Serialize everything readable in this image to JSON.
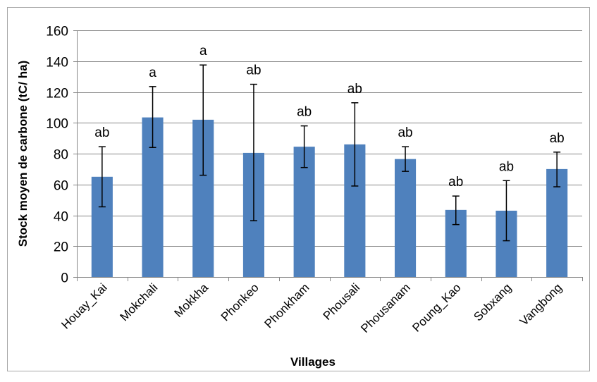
{
  "chart_data": {
    "type": "bar",
    "title": "",
    "xlabel": "Villages",
    "ylabel": "Stock moyen de carbone (tC/ ha)",
    "ylim": [
      0,
      160
    ],
    "yticks": [
      0,
      20,
      40,
      60,
      80,
      100,
      120,
      140,
      160
    ],
    "grid": true,
    "legend": "none",
    "bar_color": "#4F81BD",
    "categories": [
      "Houay_Kai",
      "Mokchali",
      "Mokkha",
      "Phonkeo",
      "Phonkham",
      "Phousali",
      "Phousanam",
      "Poung_Kao",
      "Sobxang",
      "Vangbong"
    ],
    "values": [
      65,
      103.5,
      102,
      80.5,
      84.5,
      86,
      76.5,
      43.5,
      43,
      70
    ],
    "error_low": [
      45.5,
      84,
      66,
      36.5,
      71,
      59,
      68.5,
      34,
      23.5,
      58.5
    ],
    "error_high": [
      84.5,
      123.5,
      137.5,
      125,
      98,
      113,
      84.5,
      52.5,
      62.5,
      81
    ],
    "significance": [
      "ab",
      "a",
      "a",
      "ab",
      "ab",
      "ab",
      "ab",
      "ab",
      "ab",
      "ab"
    ]
  }
}
